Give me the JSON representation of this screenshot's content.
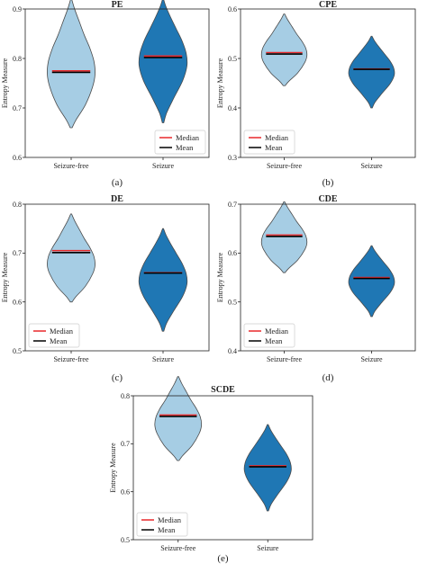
{
  "colors": {
    "seizure_free": "#a6cde4",
    "seizure": "#1f77b4",
    "median": "#e8282a",
    "mean": "#000000",
    "outline": "#4a4a4a"
  },
  "chart_data": [
    {
      "type": "violin",
      "title": "PE",
      "caption": "(a)",
      "ylabel": "Entropy Measure",
      "ylim": [
        0.6,
        0.9
      ],
      "yticks": [
        "0.6",
        "0.7",
        "0.8",
        "0.9"
      ],
      "categories": [
        "Seizure-free",
        "Seizure"
      ],
      "legend": {
        "position": "lower-right",
        "entries": [
          "Median",
          "Mean"
        ]
      },
      "series": [
        {
          "category": "Seizure-free",
          "min": 0.66,
          "max": 0.92,
          "median": 0.775,
          "mean": 0.772
        },
        {
          "category": "Seizure",
          "min": 0.67,
          "max": 0.92,
          "median": 0.805,
          "mean": 0.802
        }
      ]
    },
    {
      "type": "violin",
      "title": "CPE",
      "caption": "(b)",
      "ylabel": "Entropy Measure",
      "ylim": [
        0.3,
        0.6
      ],
      "yticks": [
        "0.3",
        "0.4",
        "0.5",
        "0.6"
      ],
      "categories": [
        "Seizure-free",
        "Seizure"
      ],
      "legend": {
        "position": "lower-left",
        "entries": [
          "Median",
          "Mean"
        ]
      },
      "series": [
        {
          "category": "Seizure-free",
          "min": 0.445,
          "max": 0.59,
          "median": 0.512,
          "mean": 0.509
        },
        {
          "category": "Seizure",
          "min": 0.4,
          "max": 0.545,
          "median": 0.479,
          "mean": 0.478
        }
      ]
    },
    {
      "type": "violin",
      "title": "DE",
      "caption": "(c)",
      "ylabel": "Entropy Measure",
      "ylim": [
        0.5,
        0.8
      ],
      "yticks": [
        "0.5",
        "0.6",
        "0.7",
        "0.8"
      ],
      "categories": [
        "Seizure-free",
        "Seizure"
      ],
      "legend": {
        "position": "lower-left",
        "entries": [
          "Median",
          "Mean"
        ]
      },
      "series": [
        {
          "category": "Seizure-free",
          "min": 0.6,
          "max": 0.78,
          "median": 0.705,
          "mean": 0.701
        },
        {
          "category": "Seizure",
          "min": 0.54,
          "max": 0.75,
          "median": 0.66,
          "mean": 0.659
        }
      ]
    },
    {
      "type": "violin",
      "title": "CDE",
      "caption": "(d)",
      "ylabel": "Entropy Measure",
      "ylim": [
        0.4,
        0.7
      ],
      "yticks": [
        "0.4",
        "0.5",
        "0.6",
        "0.7"
      ],
      "categories": [
        "Seizure-free",
        "Seizure"
      ],
      "legend": {
        "position": "lower-left",
        "entries": [
          "Median",
          "Mean"
        ]
      },
      "series": [
        {
          "category": "Seizure-free",
          "min": 0.56,
          "max": 0.705,
          "median": 0.637,
          "mean": 0.634
        },
        {
          "category": "Seizure",
          "min": 0.47,
          "max": 0.615,
          "median": 0.55,
          "mean": 0.548
        }
      ]
    },
    {
      "type": "violin",
      "title": "SCDE",
      "caption": "(e)",
      "ylabel": "Entropy Measure",
      "ylim": [
        0.5,
        0.8
      ],
      "yticks": [
        "0.5",
        "0.6",
        "0.7",
        "0.8"
      ],
      "categories": [
        "Seizure-free",
        "Seizure"
      ],
      "legend": {
        "position": "lower-left",
        "entries": [
          "Median",
          "Mean"
        ]
      },
      "series": [
        {
          "category": "Seizure-free",
          "min": 0.665,
          "max": 0.84,
          "median": 0.76,
          "mean": 0.757
        },
        {
          "category": "Seizure",
          "min": 0.56,
          "max": 0.74,
          "median": 0.654,
          "mean": 0.652
        }
      ]
    }
  ]
}
